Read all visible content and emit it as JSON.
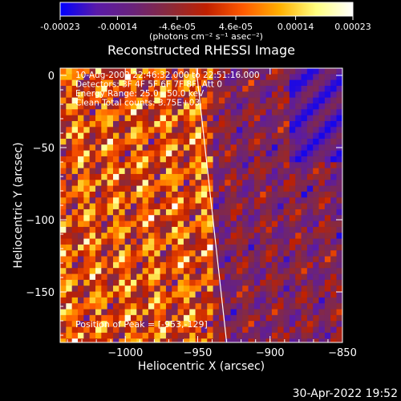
{
  "colorbar": {
    "ticks": [
      "-0.00023",
      "-0.00014",
      "-4.6e-05",
      "4.6e-05",
      "0.00014",
      "0.00023"
    ],
    "units": "(photons cm⁻² s⁻¹ asec⁻²)",
    "stops": [
      "#0000ff",
      "#5a1aa8",
      "#6a237a",
      "#8a2a3a",
      "#c02000",
      "#ff5a00",
      "#ffb000",
      "#ffff80",
      "#ffffff"
    ]
  },
  "chart_data": {
    "type": "heatmap",
    "title": "Reconstructed RHESSI Image",
    "xlabel": "Heliocentric X (arcsec)",
    "ylabel": "Heliocentric Y (arcsec)",
    "xlim": [
      -1045,
      -850
    ],
    "ylim": [
      -185,
      5
    ],
    "xticks": [
      -1000,
      -950,
      -900,
      -850
    ],
    "xtick_labels": [
      "−1000",
      "−950",
      "−900",
      "−850"
    ],
    "yticks": [
      0,
      -50,
      -100,
      -150
    ],
    "ytick_labels": [
      "0",
      "−50",
      "−100",
      "−150"
    ],
    "color_range": [
      -0.00023,
      0.00023
    ],
    "limb_line": [
      [
        -951,
        5
      ],
      [
        -930,
        -185
      ]
    ],
    "annotations": [
      "10-Aug-2002 22:46:32.000 to 22:51:16.000",
      "Detectors: 3F 4F 5F 6F 7F 8F, Att 0",
      "Energy Range: 25.0 - 50.0 keV",
      "Clean     Total counts: 3.75E+03"
    ],
    "peak_label": "Position of Peak = [-953,-129]",
    "peak": [
      -953,
      -129
    ]
  },
  "footer": {
    "timestamp": "30-Apr-2022 19:52"
  }
}
